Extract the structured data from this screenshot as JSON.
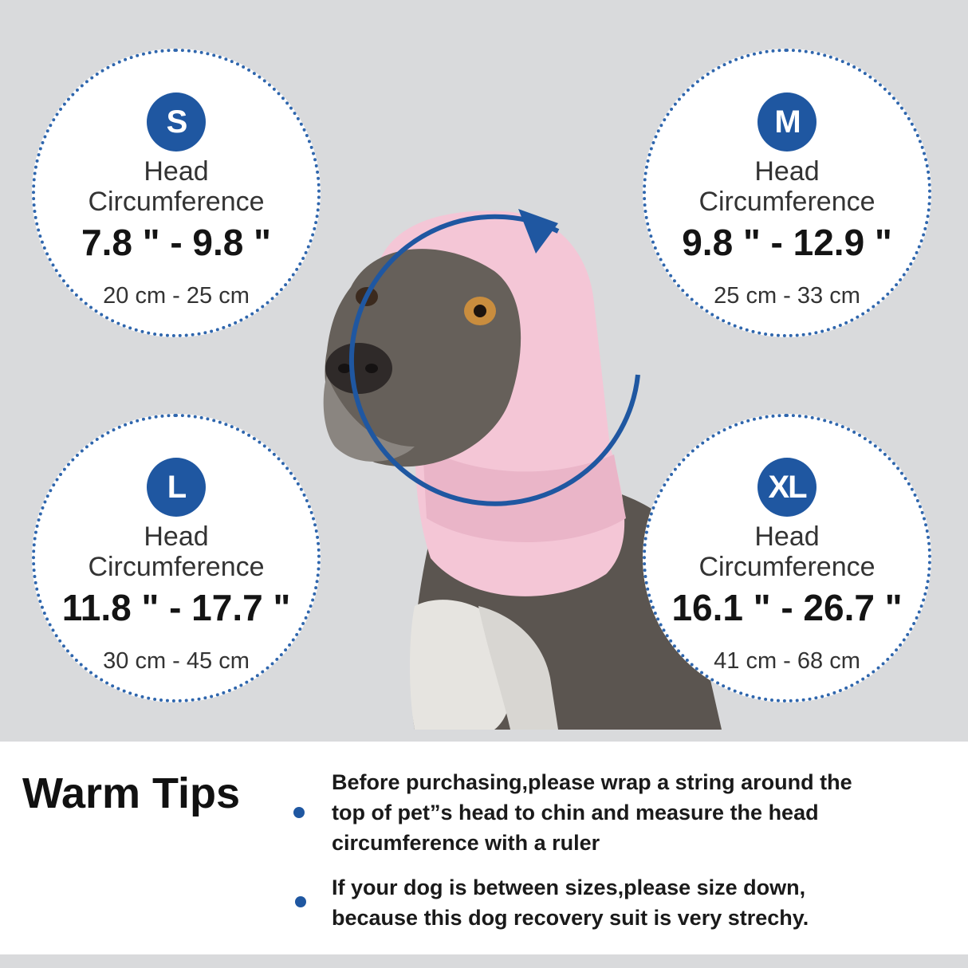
{
  "sizes": {
    "s": {
      "badge": "S",
      "label_1": "Head",
      "label_2": "Circumference",
      "inches": "7.8 \" - 9.8 \"",
      "cm": "20 cm - 25 cm"
    },
    "m": {
      "badge": "M",
      "label_1": "Head",
      "label_2": "Circumference",
      "inches": "9.8 \" - 12.9 \"",
      "cm": "25 cm - 33 cm"
    },
    "l": {
      "badge": "L",
      "label_1": "Head",
      "label_2": "Circumference",
      "inches": "11.8 \" - 17.7 \"",
      "cm": "30 cm - 45 cm"
    },
    "xl": {
      "badge": "XL",
      "label_1": "Head",
      "label_2": "Circumference",
      "inches": "16.1 \" - 26.7 \"",
      "cm": "41 cm - 68 cm"
    }
  },
  "tips": {
    "title": "Warm Tips",
    "items": [
      {
        "line_1": "Before purchasing,please wrap a string around the",
        "line_2": "top of pet”s head to chin and measure the head",
        "line_3": "circumference with a ruler"
      },
      {
        "line_1": "If your dog is between sizes,please size down,",
        "line_2": "because this dog recovery suit is very strechy."
      }
    ]
  },
  "colors": {
    "accent": "#1f57a1",
    "background": "#d9dadc",
    "snood": "#f4c6d6"
  },
  "icons": {
    "bullet": "dot-bullet-icon",
    "measure_arrow": "circular-arrow-icon"
  }
}
